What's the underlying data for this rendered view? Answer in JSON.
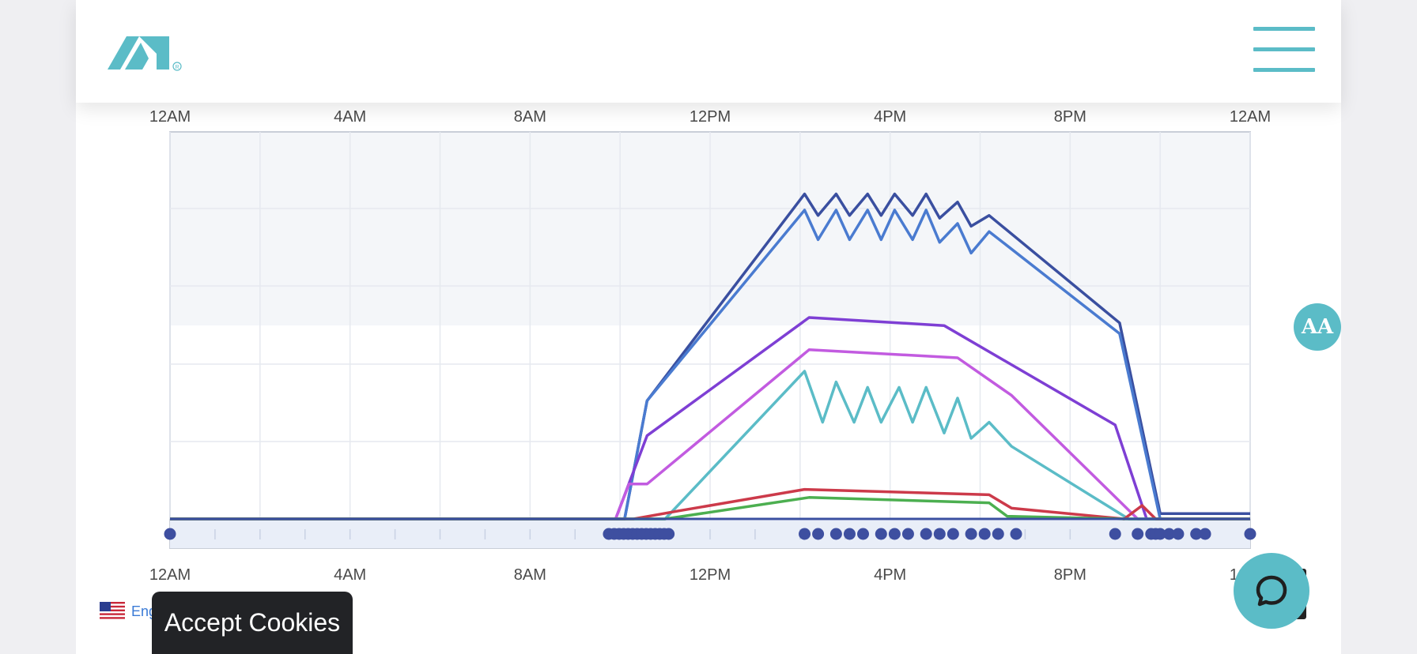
{
  "header": {
    "logo_icon": "ai-logo-icon",
    "menu_icon": "hamburger-menu-icon"
  },
  "colors": {
    "accent": "#5bbcc7",
    "chart_bg_band": "#f4f6f9",
    "timeline_bg": "#e9eef8",
    "dot_color": "#3e4fa0"
  },
  "chart_data": {
    "type": "line",
    "x_ticks": [
      "12AM",
      "4AM",
      "8AM",
      "12PM",
      "4PM",
      "8PM",
      "12AM"
    ],
    "x_range_hours": [
      0,
      24
    ],
    "grid": true,
    "series": [
      {
        "color": "#3a4fa0",
        "points": [
          [
            0,
            0
          ],
          [
            10.1,
            0
          ],
          [
            10.6,
            0.44
          ],
          [
            14.1,
            1.21
          ],
          [
            14.4,
            1.13
          ],
          [
            14.8,
            1.21
          ],
          [
            15.1,
            1.13
          ],
          [
            15.5,
            1.21
          ],
          [
            15.8,
            1.13
          ],
          [
            16.1,
            1.21
          ],
          [
            16.5,
            1.13
          ],
          [
            16.8,
            1.21
          ],
          [
            17.1,
            1.12
          ],
          [
            17.5,
            1.18
          ],
          [
            17.8,
            1.09
          ],
          [
            18.2,
            1.13
          ],
          [
            21.1,
            0.73
          ],
          [
            22.0,
            0.02
          ],
          [
            24,
            0.02
          ]
        ]
      },
      {
        "color": "#4a7bd0",
        "points": [
          [
            0,
            0
          ],
          [
            10.1,
            0
          ],
          [
            10.6,
            0.44
          ],
          [
            14.1,
            1.15
          ],
          [
            14.4,
            1.04
          ],
          [
            14.8,
            1.15
          ],
          [
            15.1,
            1.04
          ],
          [
            15.5,
            1.15
          ],
          [
            15.8,
            1.04
          ],
          [
            16.1,
            1.15
          ],
          [
            16.5,
            1.04
          ],
          [
            16.8,
            1.15
          ],
          [
            17.1,
            1.03
          ],
          [
            17.5,
            1.1
          ],
          [
            17.8,
            0.99
          ],
          [
            18.2,
            1.07
          ],
          [
            21.1,
            0.69
          ],
          [
            22.0,
            0.0
          ],
          [
            24,
            0.0
          ]
        ]
      },
      {
        "color": "#7e3fd4",
        "points": [
          [
            0,
            0
          ],
          [
            9.9,
            0
          ],
          [
            10.6,
            0.31
          ],
          [
            14.2,
            0.75
          ],
          [
            17.2,
            0.72
          ],
          [
            21.0,
            0.35
          ],
          [
            21.7,
            0.0
          ],
          [
            24,
            0.0
          ]
        ]
      },
      {
        "color": "#c25be0",
        "points": [
          [
            0,
            0
          ],
          [
            9.9,
            0
          ],
          [
            10.2,
            0.13
          ],
          [
            10.6,
            0.13
          ],
          [
            14.2,
            0.63
          ],
          [
            17.5,
            0.6
          ],
          [
            18.7,
            0.46
          ],
          [
            21.5,
            0.0
          ],
          [
            24,
            0.0
          ]
        ]
      },
      {
        "color": "#5bbcc7",
        "points": [
          [
            0,
            0
          ],
          [
            11.0,
            0
          ],
          [
            14.1,
            0.55
          ],
          [
            14.5,
            0.36
          ],
          [
            14.8,
            0.51
          ],
          [
            15.2,
            0.36
          ],
          [
            15.5,
            0.49
          ],
          [
            15.8,
            0.36
          ],
          [
            16.2,
            0.49
          ],
          [
            16.5,
            0.36
          ],
          [
            16.8,
            0.49
          ],
          [
            17.2,
            0.32
          ],
          [
            17.5,
            0.45
          ],
          [
            17.8,
            0.3
          ],
          [
            18.2,
            0.36
          ],
          [
            18.7,
            0.27
          ],
          [
            21.3,
            0.0
          ],
          [
            24,
            0.0
          ]
        ]
      },
      {
        "color": "#cc3a4a",
        "points": [
          [
            0,
            0
          ],
          [
            10.3,
            0
          ],
          [
            11.3,
            0.03
          ],
          [
            14.1,
            0.11
          ],
          [
            18.2,
            0.09
          ],
          [
            18.7,
            0.04
          ],
          [
            21.2,
            0.0
          ],
          [
            21.6,
            0.05
          ],
          [
            21.9,
            0.0
          ],
          [
            24,
            0.0
          ]
        ]
      },
      {
        "color": "#4caf50",
        "points": [
          [
            0,
            0
          ],
          [
            10.3,
            0
          ],
          [
            11.0,
            0.0
          ],
          [
            14.2,
            0.08
          ],
          [
            18.2,
            0.06
          ],
          [
            18.6,
            0.01
          ],
          [
            21.2,
            0.0
          ],
          [
            24,
            0.0
          ]
        ]
      }
    ],
    "event_dots_hours": [
      0,
      9.75,
      9.87,
      9.98,
      10.08,
      10.18,
      10.28,
      10.38,
      10.48,
      10.58,
      10.68,
      10.78,
      10.88,
      10.98,
      11.08,
      14.1,
      14.4,
      14.8,
      15.1,
      15.4,
      15.8,
      16.1,
      16.4,
      16.8,
      17.1,
      17.4,
      17.8,
      18.1,
      18.4,
      18.8,
      21.0,
      21.5,
      21.8,
      21.9,
      22.0,
      22.2,
      22.4,
      22.8,
      23.0,
      24
    ]
  },
  "a11y_button": {
    "label": "AA"
  },
  "chat_button": {
    "icon": "chat-bubble-icon"
  },
  "language": {
    "label": "English",
    "flag_icon": "us-flag-icon"
  },
  "cookie_banner": {
    "label": "Accept Cookies"
  }
}
